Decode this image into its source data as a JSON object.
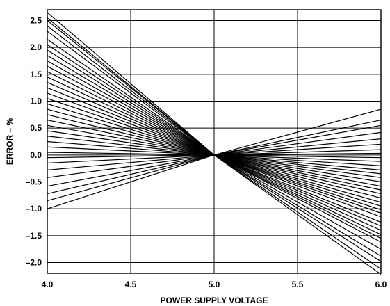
{
  "chart_data": {
    "type": "line",
    "xlabel": "POWER SUPPLY VOLTAGE",
    "ylabel": "ERROR – %",
    "xlim": [
      4.0,
      6.0
    ],
    "ylim": [
      -2.2,
      2.7
    ],
    "x_ticks": [
      4.0,
      4.5,
      5.0,
      5.5,
      6.0
    ],
    "x_tick_labels": [
      "4.0",
      "4.5",
      "5.0",
      "5.5",
      "6.0"
    ],
    "y_ticks": [
      2.5,
      2.0,
      1.5,
      1.0,
      0.5,
      0.0,
      -0.5,
      -1.0,
      -1.5,
      -2.0
    ],
    "y_tick_labels": [
      "2.5",
      "2.0",
      "1.5",
      "1.0",
      "0.5",
      "0.0",
      "–0.5",
      "–1.0",
      "–1.5",
      "–2.0"
    ],
    "grid": true,
    "x": [
      4.0,
      5.0,
      6.0
    ],
    "series": [
      {
        "values": [
          2.65,
          0,
          -2.22
        ]
      },
      {
        "values": [
          2.55,
          0,
          -2.12
        ]
      },
      {
        "values": [
          2.5,
          0,
          -1.98
        ]
      },
      {
        "values": [
          2.4,
          0,
          -1.88
        ]
      },
      {
        "values": [
          2.3,
          0,
          -1.75
        ]
      },
      {
        "values": [
          2.15,
          0,
          -1.62
        ]
      },
      {
        "values": [
          2.05,
          0,
          -1.55
        ]
      },
      {
        "values": [
          1.95,
          0,
          -1.48
        ]
      },
      {
        "values": [
          1.85,
          0,
          -1.4
        ]
      },
      {
        "values": [
          1.75,
          0,
          -1.32
        ]
      },
      {
        "values": [
          1.65,
          0,
          -1.25
        ]
      },
      {
        "values": [
          1.55,
          0,
          -1.15
        ]
      },
      {
        "values": [
          1.45,
          0,
          -1.08
        ]
      },
      {
        "values": [
          1.35,
          0,
          -1.02
        ]
      },
      {
        "values": [
          1.25,
          0,
          -0.95
        ]
      },
      {
        "values": [
          1.15,
          0,
          -0.88
        ]
      },
      {
        "values": [
          1.05,
          0,
          -0.8
        ]
      },
      {
        "values": [
          0.95,
          0,
          -0.72
        ]
      },
      {
        "values": [
          0.85,
          0,
          -0.65
        ]
      },
      {
        "values": [
          0.75,
          0,
          -0.58
        ]
      },
      {
        "values": [
          0.65,
          0,
          -0.5
        ]
      },
      {
        "values": [
          0.55,
          0,
          -0.42
        ]
      },
      {
        "values": [
          0.45,
          0,
          -0.35
        ]
      },
      {
        "values": [
          0.35,
          0,
          -0.28
        ]
      },
      {
        "values": [
          0.25,
          0,
          -0.2
        ]
      },
      {
        "values": [
          0.15,
          0,
          -0.12
        ]
      },
      {
        "values": [
          0.05,
          0,
          -0.05
        ]
      },
      {
        "values": [
          -0.05,
          0,
          0.03
        ]
      },
      {
        "values": [
          -0.15,
          0,
          0.1
        ]
      },
      {
        "values": [
          -0.28,
          0,
          0.2
        ]
      },
      {
        "values": [
          -0.42,
          0,
          0.3
        ]
      },
      {
        "values": [
          -0.58,
          0,
          0.42
        ]
      },
      {
        "values": [
          -0.72,
          0,
          0.55
        ]
      },
      {
        "values": [
          -0.85,
          0,
          0.65
        ]
      },
      {
        "values": [
          -1.0,
          0,
          0.85
        ]
      }
    ]
  }
}
